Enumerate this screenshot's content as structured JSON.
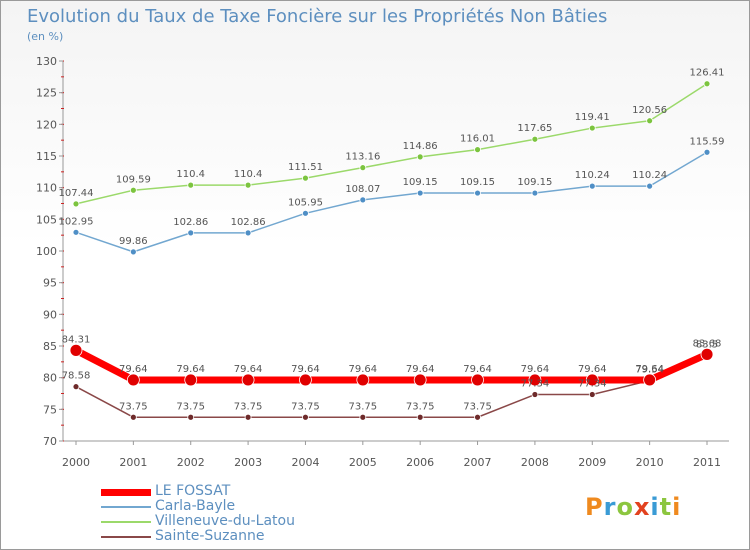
{
  "title": "Evolution du Taux de Taxe Foncière sur les Propriétés Non Bâties",
  "unit_label": "(en %)",
  "logo_text": "Proxiti",
  "chart_data": {
    "type": "line",
    "x": [
      "2000",
      "2001",
      "2002",
      "2003",
      "2004",
      "2005",
      "2006",
      "2007",
      "2008",
      "2009",
      "2010",
      "2011"
    ],
    "ylim": [
      70,
      130
    ],
    "yticks": [
      70,
      75,
      80,
      85,
      90,
      95,
      100,
      105,
      110,
      115,
      120,
      125,
      130
    ],
    "grid": false,
    "legend_position": "bottom-left",
    "series": [
      {
        "name": "Villeneuve-du-Latou",
        "color": "#9bd96a",
        "marker_color": "#7cc43f",
        "width": 1.5,
        "marker_r": 3,
        "values": [
          107.44,
          109.59,
          110.4,
          110.4,
          111.51,
          113.16,
          114.86,
          116.01,
          117.65,
          119.41,
          120.56,
          126.41
        ],
        "labels": [
          "107.44",
          "109.59",
          "110.4",
          "110.4",
          "111.51",
          "113.16",
          "114.86",
          "116.01",
          "117.65",
          "119.41",
          "120.56",
          "126.41"
        ]
      },
      {
        "name": "Carla-Bayle",
        "color": "#72a7d0",
        "marker_color": "#4f8fc6",
        "width": 1.5,
        "marker_r": 3,
        "values": [
          102.95,
          99.86,
          102.86,
          102.86,
          105.95,
          108.07,
          109.15,
          109.15,
          109.15,
          110.24,
          110.24,
          115.59
        ],
        "labels": [
          "102.95",
          "99.86",
          "102.86",
          "102.86",
          "105.95",
          "108.07",
          "109.15",
          "109.15",
          "109.15",
          "110.24",
          "110.24",
          "115.59"
        ]
      },
      {
        "name": "Sainte-Suzanne",
        "color": "#8a4848",
        "marker_color": "#6e2a2a",
        "width": 1.5,
        "marker_r": 3,
        "values": [
          78.58,
          73.75,
          73.75,
          73.75,
          73.75,
          73.75,
          73.75,
          73.75,
          77.34,
          77.34,
          79.54,
          83.5
        ],
        "labels": [
          "78.58",
          "73.75",
          "73.75",
          "73.75",
          "73.75",
          "73.75",
          "73.75",
          "73.75",
          "77.34",
          "77.34",
          "79.54",
          "83.5"
        ]
      },
      {
        "name": "LE FOSSAT",
        "color": "#ff0000",
        "marker_color": "#e00000",
        "width": 7,
        "marker_r": 6,
        "values": [
          84.31,
          79.64,
          79.64,
          79.64,
          79.64,
          79.64,
          79.64,
          79.64,
          79.64,
          79.64,
          79.64,
          83.68
        ],
        "labels": [
          "84.31",
          "79.64",
          "79.64",
          "79.64",
          "79.64",
          "79.64",
          "79.64",
          "79.64",
          "79.64",
          "79.64",
          "79.64",
          "83.68"
        ]
      }
    ],
    "legend_order": [
      "LE FOSSAT",
      "Carla-Bayle",
      "Villeneuve-du-Latou",
      "Sainte-Suzanne"
    ]
  }
}
